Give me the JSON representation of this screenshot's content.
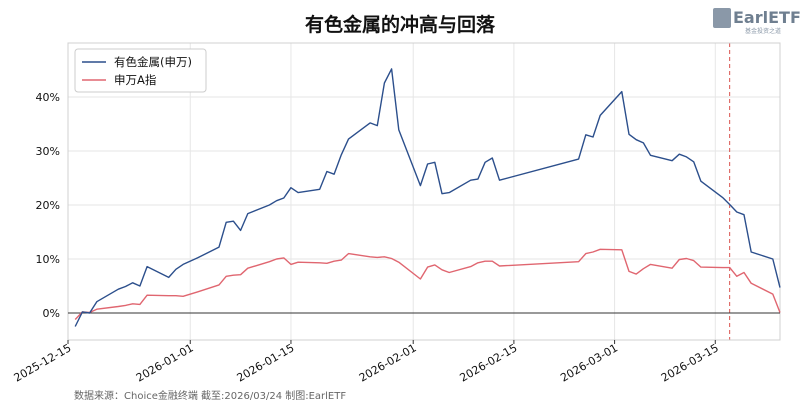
{
  "chart_data": {
    "type": "line",
    "title": "有色金属的冲高与回落",
    "xlabel": "",
    "ylabel": "",
    "x_tick_labels": [
      "2025-12-15",
      "2026-01-01",
      "2026-01-15",
      "2026-02-01",
      "2026-02-15",
      "2026-03-01",
      "2026-03-15"
    ],
    "y_tick_labels": [
      "0%",
      "10%",
      "20%",
      "30%",
      "40%"
    ],
    "ylim": [
      -0.05,
      0.5
    ],
    "grid": true,
    "legend_position": "top-left",
    "marker_date": "2026-03-17",
    "x": [
      "2025-12-16",
      "2025-12-17",
      "2025-12-18",
      "2025-12-19",
      "2025-12-22",
      "2025-12-23",
      "2025-12-24",
      "2025-12-25",
      "2025-12-26",
      "2025-12-29",
      "2025-12-30",
      "2025-12-31",
      "2026-01-02",
      "2026-01-05",
      "2026-01-06",
      "2026-01-07",
      "2026-01-08",
      "2026-01-09",
      "2026-01-12",
      "2026-01-13",
      "2026-01-14",
      "2026-01-15",
      "2026-01-16",
      "2026-01-19",
      "2026-01-20",
      "2026-01-21",
      "2026-01-22",
      "2026-01-23",
      "2026-01-26",
      "2026-01-27",
      "2026-01-28",
      "2026-01-29",
      "2026-01-30",
      "2026-02-02",
      "2026-02-03",
      "2026-02-04",
      "2026-02-05",
      "2026-02-06",
      "2026-02-09",
      "2026-02-10",
      "2026-02-11",
      "2026-02-12",
      "2026-02-13",
      "2026-02-24",
      "2026-02-25",
      "2026-02-26",
      "2026-02-27",
      "2026-03-02",
      "2026-03-03",
      "2026-03-04",
      "2026-03-05",
      "2026-03-06",
      "2026-03-09",
      "2026-03-10",
      "2026-03-11",
      "2026-03-12",
      "2026-03-13",
      "2026-03-16",
      "2026-03-17",
      "2026-03-18",
      "2026-03-19",
      "2026-03-20",
      "2026-03-23",
      "2026-03-24"
    ],
    "series": [
      {
        "name": "有色金属(申万)",
        "color": "#2c4f8c",
        "values": [
          -0.025,
          0.002,
          0.0,
          0.021,
          0.044,
          0.049,
          0.056,
          0.05,
          0.086,
          0.066,
          0.081,
          0.09,
          0.102,
          0.122,
          0.168,
          0.17,
          0.153,
          0.184,
          0.2,
          0.208,
          0.213,
          0.232,
          0.223,
          0.229,
          0.262,
          0.257,
          0.293,
          0.322,
          0.352,
          0.347,
          0.426,
          0.452,
          0.339,
          0.236,
          0.276,
          0.279,
          0.221,
          0.223,
          0.246,
          0.248,
          0.279,
          0.287,
          0.246,
          0.285,
          0.33,
          0.326,
          0.366,
          0.41,
          0.331,
          0.321,
          0.315,
          0.292,
          0.282,
          0.294,
          0.289,
          0.28,
          0.244,
          0.214,
          0.201,
          0.187,
          0.182,
          0.113,
          0.1,
          0.047
        ]
      },
      {
        "name": "申万A指",
        "color": "#e06670",
        "values": [
          -0.012,
          0.002,
          0.001,
          0.007,
          0.012,
          0.014,
          0.017,
          0.016,
          0.033,
          0.032,
          0.032,
          0.031,
          0.039,
          0.052,
          0.068,
          0.07,
          0.071,
          0.083,
          0.095,
          0.1,
          0.102,
          0.09,
          0.094,
          0.093,
          0.092,
          0.096,
          0.098,
          0.11,
          0.104,
          0.103,
          0.104,
          0.101,
          0.094,
          0.063,
          0.085,
          0.089,
          0.08,
          0.075,
          0.086,
          0.093,
          0.096,
          0.096,
          0.087,
          0.095,
          0.11,
          0.113,
          0.118,
          0.117,
          0.077,
          0.072,
          0.082,
          0.09,
          0.083,
          0.099,
          0.101,
          0.097,
          0.085,
          0.084,
          0.084,
          0.068,
          0.075,
          0.055,
          0.035,
          0.001
        ]
      }
    ]
  },
  "source_text": "数据来源：Choice金融终端 截至:2026/03/24 制图:EarlETF",
  "logo": {
    "text": "EarlETF",
    "subtext": "基金投资之道"
  }
}
